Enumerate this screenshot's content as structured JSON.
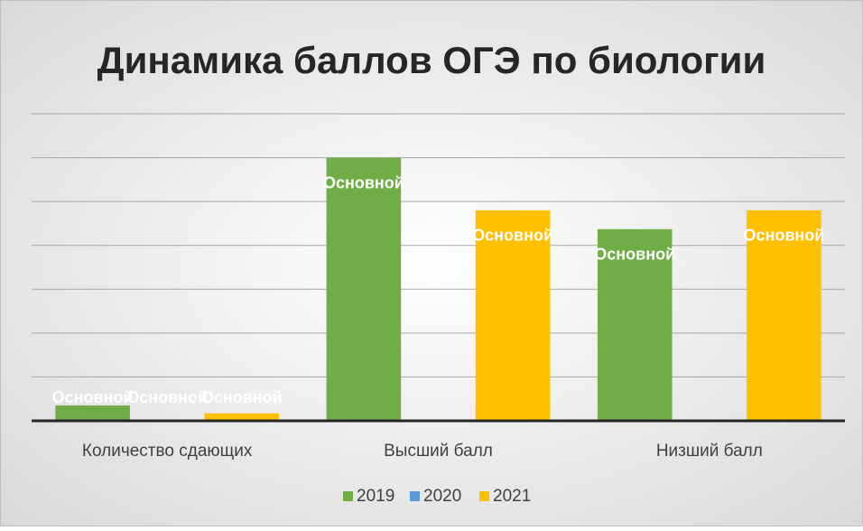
{
  "chart_data": {
    "type": "bar",
    "title": "Динамика баллов ОГЭ по биологии",
    "categories": [
      "Количество сдающих",
      "Высший балл",
      "Низший балл"
    ],
    "series": [
      {
        "name": "2019",
        "color": "#70ad47",
        "values": [
          0.35,
          6,
          4.37
        ],
        "value_labels": [
          "Основной",
          "Основной",
          "Основной"
        ]
      },
      {
        "name": "2020",
        "color": "#5b9bd5",
        "values": [
          0,
          null,
          null
        ],
        "value_labels": [
          "Основной",
          null,
          null
        ]
      },
      {
        "name": "2021",
        "color": "#ffc000",
        "values": [
          0.17,
          4.8,
          4.8
        ],
        "value_labels": [
          "Основной",
          "Основной",
          "Основной"
        ]
      }
    ],
    "ylim": [
      0,
      7
    ],
    "yticks": [
      0,
      1,
      2,
      3,
      4,
      5,
      6,
      7
    ],
    "grid": true,
    "legend": "bottom"
  }
}
